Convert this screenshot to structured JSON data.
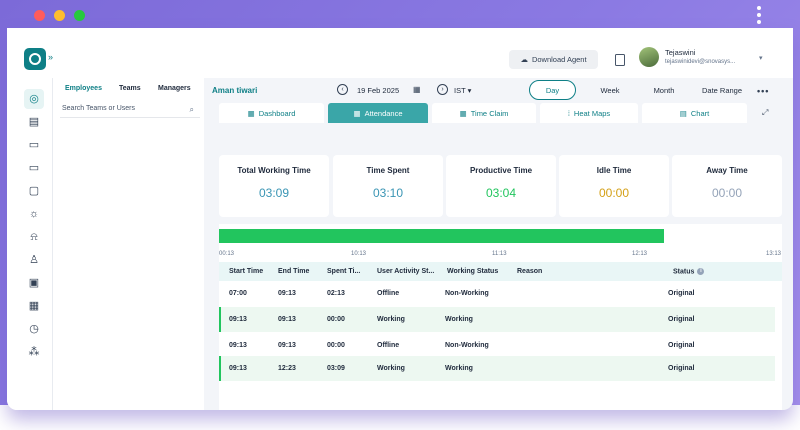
{
  "colors": {
    "brand": "#0e7f86",
    "accent": "#3aa6a8",
    "green": "#22c55e",
    "amber": "#d4a017",
    "gray_value": "#94a3b8",
    "cyan_value": "#3a95b4",
    "mac_red": "#ff5c5c",
    "mac_yellow": "#ffbd2e",
    "mac_green": "#27c93f"
  },
  "header": {
    "download_label": "Download Agent",
    "user_name": "Tejaswini",
    "user_email": "tejaswinidevi@snovasys...",
    "icons": [
      "cloud-download-icon",
      "document-icon",
      "chevron-down-icon"
    ]
  },
  "rail": {
    "icons": [
      "target-icon",
      "report-icon",
      "ticket-icon",
      "monitor-icon",
      "tv-icon",
      "bulb-icon",
      "alarm-icon",
      "user-icon",
      "briefcase-icon",
      "calendar-icon",
      "clock-icon",
      "org-chart-icon"
    ]
  },
  "panel": {
    "tabs": [
      "Employees",
      "Teams",
      "Managers"
    ],
    "active_tab": "Employees",
    "search_placeholder": "Search Teams or Users"
  },
  "toolbar": {
    "employee": "Aman tiwari",
    "date": "19 Feb 2025",
    "timezone": "IST",
    "range_options": [
      "Day",
      "Week",
      "Month",
      "Date Range"
    ],
    "active_range": "Day"
  },
  "views": {
    "tabs": [
      "Dashboard",
      "Attendance",
      "Time Claim",
      "Heat Maps",
      "Chart"
    ],
    "active": "Attendance"
  },
  "stats": [
    {
      "label": "Total Working Time",
      "value": "03:09",
      "color": "#3a95b4"
    },
    {
      "label": "Time Spent",
      "value": "03:10",
      "color": "#3a95b4"
    },
    {
      "label": "Productive Time",
      "value": "03:04",
      "color": "#22c55e"
    },
    {
      "label": "Idle Time",
      "value": "00:00",
      "color": "#d4a017"
    },
    {
      "label": "Away Time",
      "value": "00:00",
      "color": "#94a3b8"
    }
  ],
  "timeline": {
    "ticks": [
      "00:13",
      "10:13",
      "11:13",
      "12:13",
      "13:13"
    ],
    "fill_fraction": 0.79
  },
  "table": {
    "headers": [
      "Start Time",
      "End Time",
      "Spent Ti...",
      "User Activity St...",
      "Working Status",
      "Reason",
      "Status"
    ],
    "rows": [
      [
        "07:00",
        "09:13",
        "02:13",
        "Offline",
        "Non-Working",
        "",
        "Original"
      ],
      [
        "09:13",
        "09:13",
        "00:00",
        "Working",
        "Working",
        "",
        "Original"
      ],
      [
        "09:13",
        "09:13",
        "00:00",
        "Offline",
        "Non-Working",
        "",
        "Original"
      ],
      [
        "09:13",
        "12:23",
        "03:09",
        "Working",
        "Working",
        "",
        "Original"
      ]
    ]
  }
}
